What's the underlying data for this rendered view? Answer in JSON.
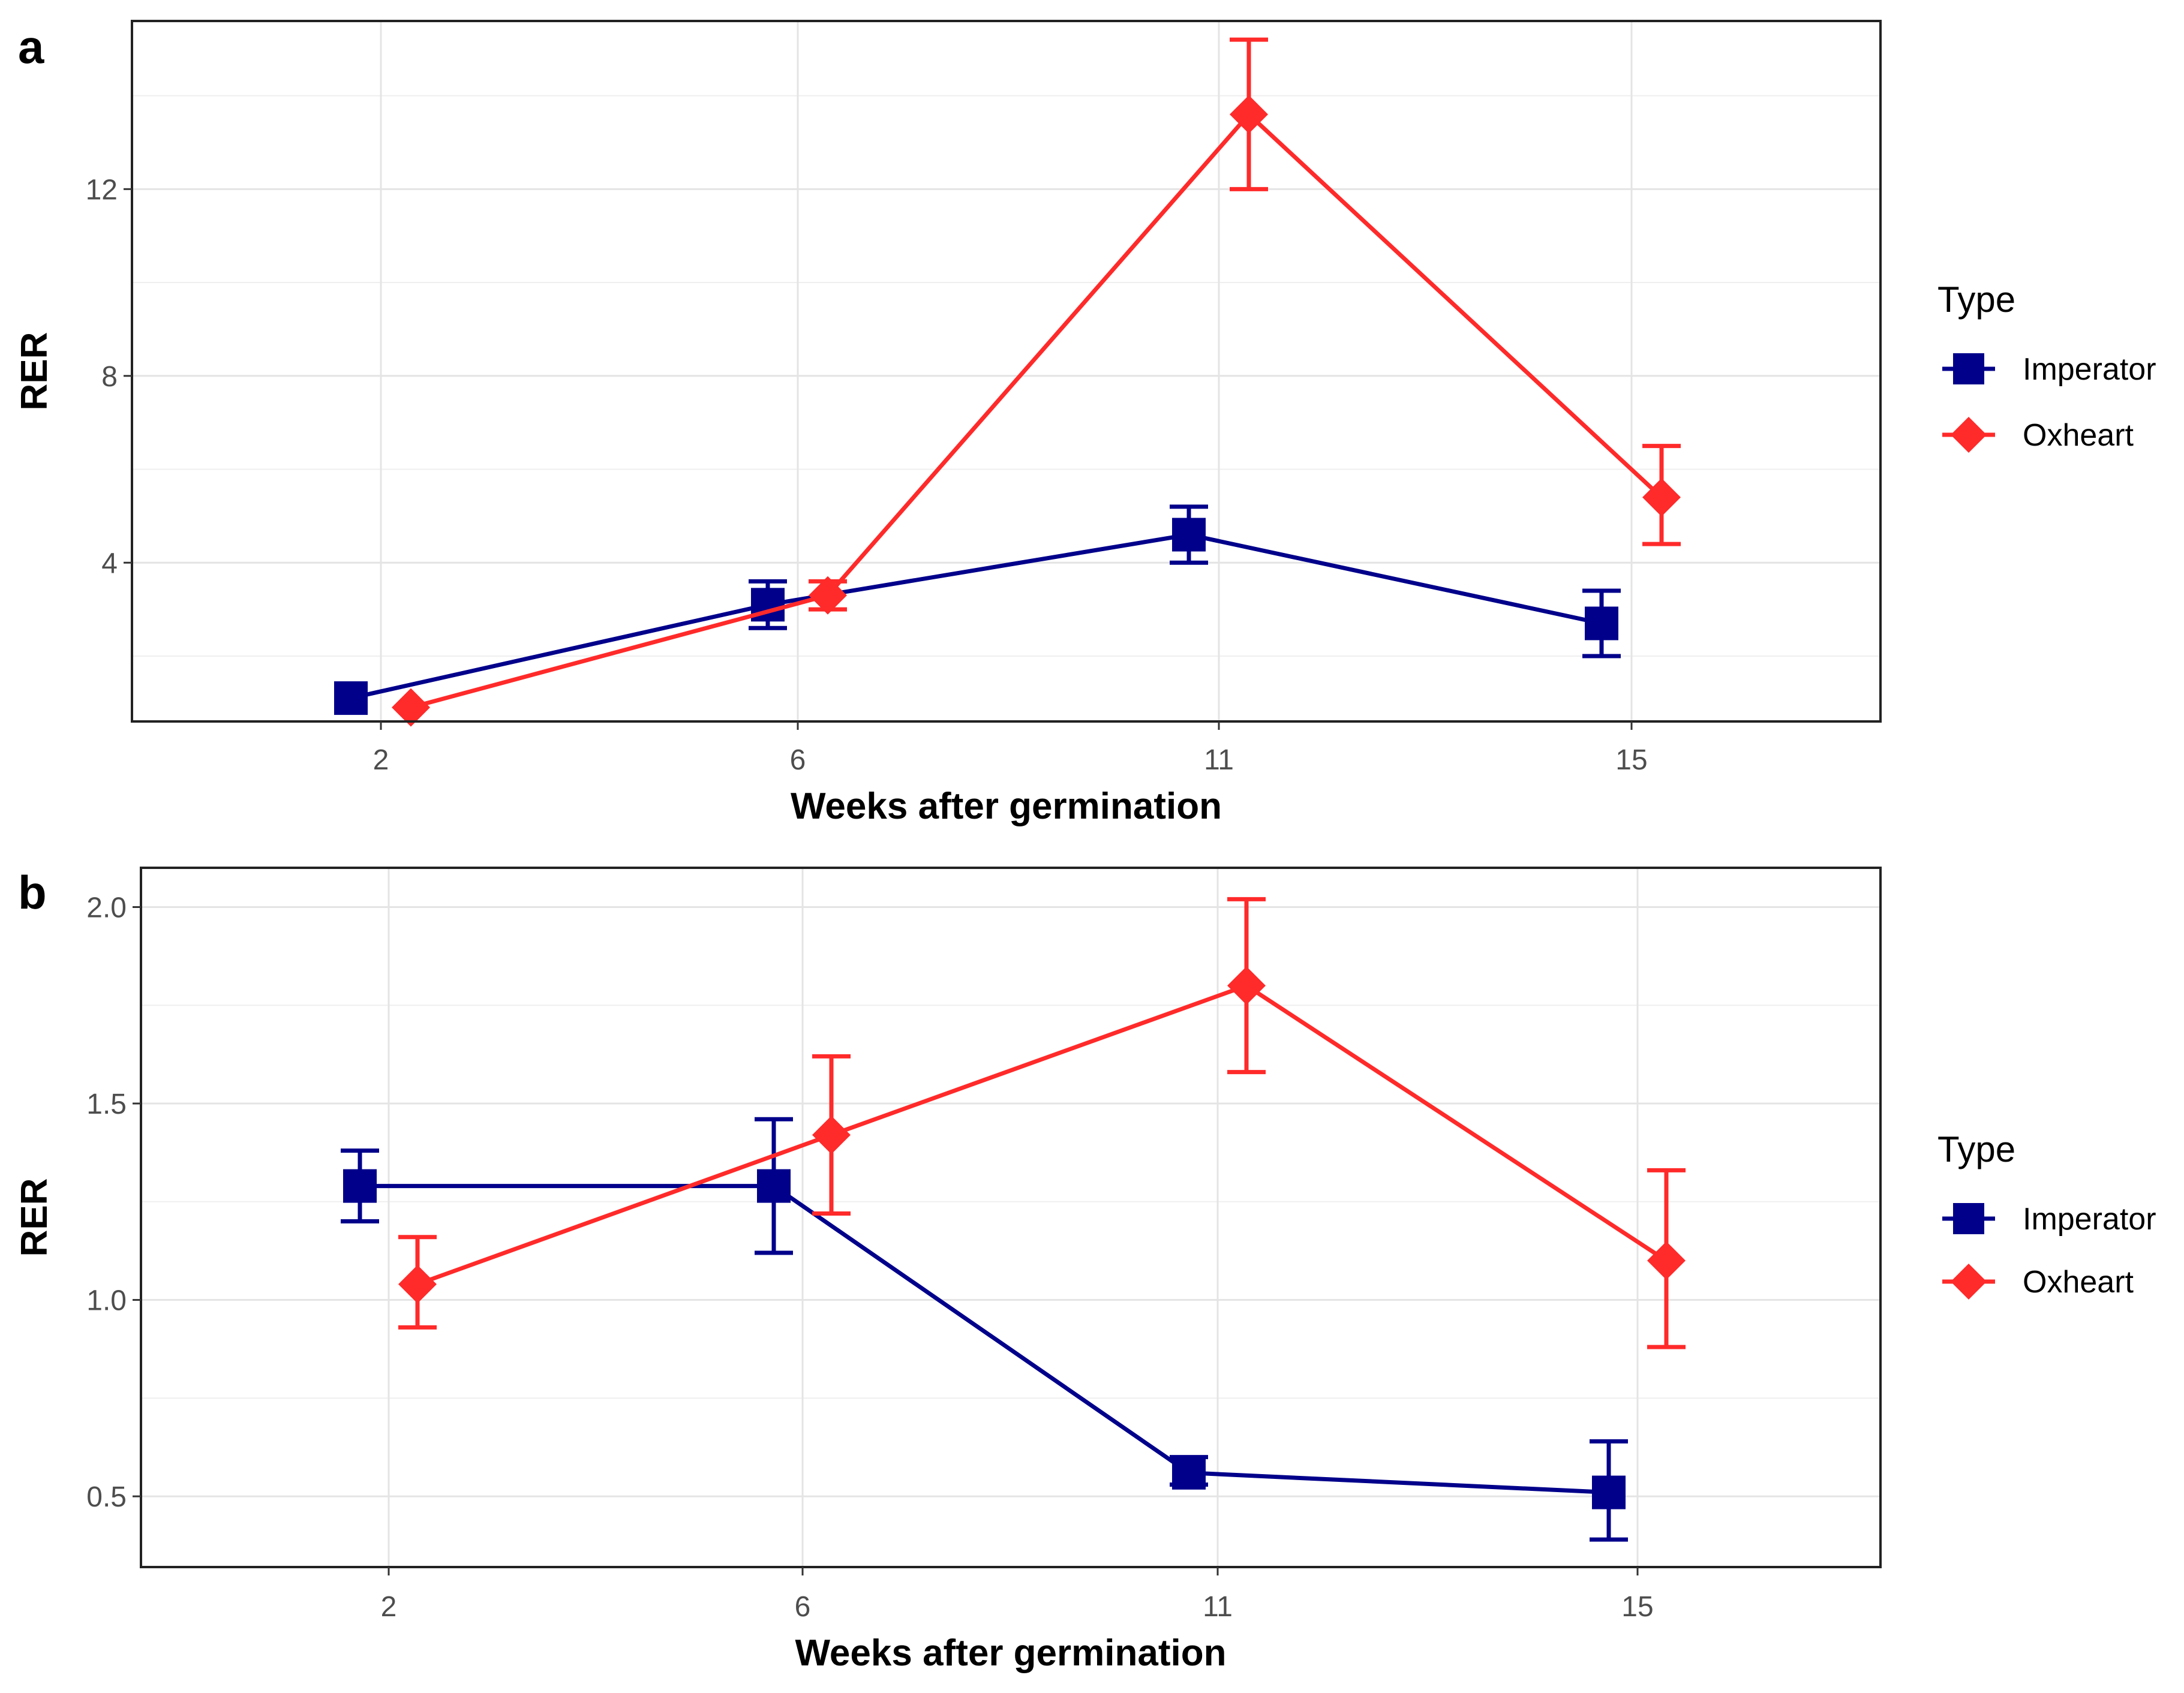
{
  "colors": {
    "imperator": "#00008B",
    "oxheart": "#FF2A2A"
  },
  "chart_data": [
    {
      "type": "line",
      "panel_label": "a",
      "title": "",
      "xlabel": "Weeks after germination",
      "ylabel": "RER",
      "categories": [
        "2",
        "6",
        "11",
        "15"
      ],
      "ylim": [
        0.6,
        15.6
      ],
      "yticks": [
        4,
        8,
        12
      ],
      "yticks_minor": [
        2,
        6,
        10,
        14
      ],
      "legend_title": "Type",
      "series": [
        {
          "name": "Imperator",
          "marker": "square",
          "values": [
            1.1,
            3.1,
            4.6,
            2.7
          ],
          "err_low": [
            1.1,
            2.6,
            4.0,
            2.0
          ],
          "err_high": [
            1.1,
            3.6,
            5.2,
            3.4
          ]
        },
        {
          "name": "Oxheart",
          "marker": "diamond",
          "values": [
            0.9,
            3.3,
            13.6,
            5.4
          ],
          "err_low": [
            0.9,
            3.0,
            12.0,
            4.4
          ],
          "err_high": [
            0.9,
            3.6,
            15.2,
            6.5
          ]
        }
      ]
    },
    {
      "type": "line",
      "panel_label": "b",
      "title": "",
      "xlabel": "Weeks after germination",
      "ylabel": "RER",
      "categories": [
        "2",
        "6",
        "11",
        "15"
      ],
      "ylim": [
        0.32,
        2.1
      ],
      "yticks": [
        0.5,
        1.0,
        1.5,
        2.0
      ],
      "ytick_labels": [
        "0.5",
        "1.0",
        "1.5",
        "2.0"
      ],
      "yticks_minor": [
        0.75,
        1.25,
        1.75
      ],
      "legend_title": "Type",
      "series": [
        {
          "name": "Imperator",
          "marker": "square",
          "values": [
            1.29,
            1.29,
            0.56,
            0.51
          ],
          "err_low": [
            1.2,
            1.12,
            0.53,
            0.39
          ],
          "err_high": [
            1.38,
            1.46,
            0.6,
            0.64
          ]
        },
        {
          "name": "Oxheart",
          "marker": "diamond",
          "values": [
            1.04,
            1.42,
            1.8,
            1.1
          ],
          "err_low": [
            0.93,
            1.22,
            1.58,
            0.88
          ],
          "err_high": [
            1.16,
            1.62,
            2.02,
            1.33
          ]
        }
      ]
    }
  ]
}
